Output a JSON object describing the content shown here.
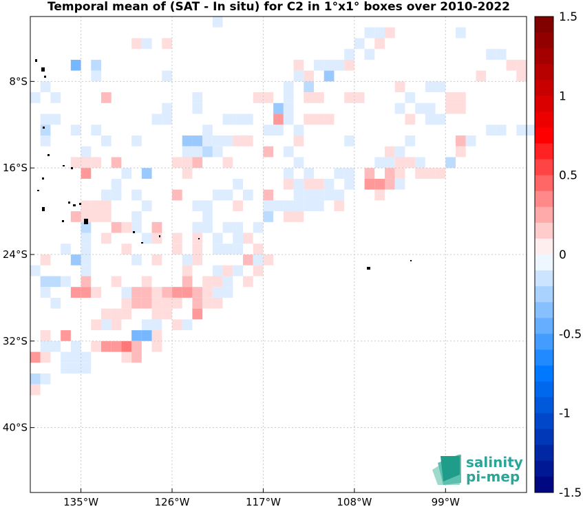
{
  "chart_data": {
    "type": "heatmap",
    "title": "Temporal mean of (SAT - In situ) for C2 in 1°x1° boxes over 2010-2022",
    "xlim": [
      -140,
      -91
    ],
    "ylim": [
      -46,
      -2
    ],
    "x_ticks": [
      {
        "value": -135,
        "label": "135°W"
      },
      {
        "value": -126,
        "label": "126°W"
      },
      {
        "value": -117,
        "label": "117°W"
      },
      {
        "value": -108,
        "label": "108°W"
      },
      {
        "value": -99,
        "label": "99°W"
      }
    ],
    "y_ticks": [
      {
        "value": -8,
        "label": "8°S"
      },
      {
        "value": -16,
        "label": "16°S"
      },
      {
        "value": -24,
        "label": "24°S"
      },
      {
        "value": -32,
        "label": "32°S"
      },
      {
        "value": -40,
        "label": "40°S"
      }
    ],
    "grid": true,
    "colorbar": {
      "min": -1.5,
      "max": 1.5,
      "ticks": [
        {
          "value": 1.5,
          "label": "1.5"
        },
        {
          "value": 1,
          "label": "1"
        },
        {
          "value": 0.5,
          "label": "0.5"
        },
        {
          "value": 0,
          "label": "0"
        },
        {
          "value": -0.5,
          "label": "-0.5"
        },
        {
          "value": -1,
          "label": "-1"
        },
        {
          "value": -1.5,
          "label": "-1.5"
        }
      ]
    },
    "cells": [
      [
        -122,
        -3,
        -0.1
      ],
      [
        -107,
        -4,
        -0.1
      ],
      [
        -106,
        -4,
        -0.1
      ],
      [
        -105,
        -4,
        0.1
      ],
      [
        -130,
        -5,
        0.1
      ],
      [
        -129,
        -5,
        -0.1
      ],
      [
        -127,
        -5,
        0.1
      ],
      [
        -108,
        -5,
        -0.1
      ],
      [
        -106,
        -5,
        0.1
      ],
      [
        -98,
        -4,
        -0.1
      ],
      [
        -109,
        -6,
        -0.1
      ],
      [
        -107,
        -6,
        -0.1
      ],
      [
        -95,
        -6,
        -0.1
      ],
      [
        -94,
        -6,
        -0.1
      ],
      [
        -136,
        -7,
        -0.4
      ],
      [
        -134,
        -7,
        -0.2
      ],
      [
        -114,
        -7,
        0.1
      ],
      [
        -112,
        -7,
        -0.1
      ],
      [
        -111,
        -7,
        -0.1
      ],
      [
        -110,
        -7,
        -0.1
      ],
      [
        -109,
        -7,
        0.1
      ],
      [
        -93,
        -7,
        0.1
      ],
      [
        -92,
        -7,
        0.1
      ],
      [
        -134,
        -8,
        -0.1
      ],
      [
        -127,
        -8,
        -0.1
      ],
      [
        -114,
        -8,
        -0.1
      ],
      [
        -113,
        -8,
        0.1
      ],
      [
        -111,
        -8,
        -0.3
      ],
      [
        -92,
        -8,
        0.1
      ],
      [
        -139,
        -9,
        -0.1
      ],
      [
        -115,
        -9,
        -0.1
      ],
      [
        -113,
        -9,
        -0.2
      ],
      [
        -104,
        -9,
        0.1
      ],
      [
        -101,
        -9,
        -0.1
      ],
      [
        -100,
        -9,
        -0.1
      ],
      [
        -96,
        -8,
        0.1
      ],
      [
        -138,
        -10,
        -0.1
      ],
      [
        -133,
        -10,
        0.2
      ],
      [
        -118,
        -10,
        0.1
      ],
      [
        -117,
        -10,
        0.1
      ],
      [
        -115,
        -10,
        -0.1
      ],
      [
        -113,
        -10,
        0.1
      ],
      [
        -112,
        -10,
        0.1
      ],
      [
        -109,
        -10,
        0.1
      ],
      [
        -108,
        -10,
        0.1
      ],
      [
        -103,
        -10,
        -0.1
      ],
      [
        -99,
        -10,
        0.1
      ],
      [
        -98,
        -10,
        0.1
      ],
      [
        -140,
        -10,
        -0.1
      ],
      [
        -124,
        -10,
        -0.1
      ],
      [
        -127,
        -11,
        -0.1
      ],
      [
        -124,
        -11,
        -0.1
      ],
      [
        -116,
        -11,
        -0.3
      ],
      [
        -115,
        -11,
        -0.1
      ],
      [
        -104,
        -11,
        -0.1
      ],
      [
        -102,
        -11,
        -0.1
      ],
      [
        -101,
        -11,
        -0.1
      ],
      [
        -99,
        -11,
        0.1
      ],
      [
        -98,
        -11,
        0.1
      ],
      [
        -139,
        -12,
        -0.1
      ],
      [
        -138,
        -12,
        -0.1
      ],
      [
        -128,
        -12,
        -0.1
      ],
      [
        -127,
        -12,
        -0.1
      ],
      [
        -121,
        -12,
        -0.1
      ],
      [
        -120,
        -12,
        -0.1
      ],
      [
        -119,
        -12,
        -0.1
      ],
      [
        -116,
        -12,
        0.3
      ],
      [
        -115,
        -12,
        -0.1
      ],
      [
        -113,
        -12,
        0.1
      ],
      [
        -112,
        -12,
        0.1
      ],
      [
        -111,
        -12,
        0.1
      ],
      [
        -103,
        -12,
        0.1
      ],
      [
        -101,
        -12,
        -0.1
      ],
      [
        -100,
        -12,
        -0.1
      ],
      [
        -139,
        -13,
        -0.2
      ],
      [
        -136,
        -13,
        -0.1
      ],
      [
        -134,
        -13,
        -0.1
      ],
      [
        -123,
        -13,
        -0.1
      ],
      [
        -117,
        -13,
        -0.1
      ],
      [
        -116,
        -13,
        -0.1
      ],
      [
        -114,
        -13,
        -0.1
      ],
      [
        -95,
        -13,
        -0.1
      ],
      [
        -94,
        -13,
        -0.1
      ],
      [
        -92,
        -13,
        -0.1
      ],
      [
        -91,
        -13,
        -0.1
      ],
      [
        -139,
        -14,
        -0.1
      ],
      [
        -133,
        -14,
        -0.1
      ],
      [
        -130,
        -14,
        -0.1
      ],
      [
        -125,
        -14,
        -0.3
      ],
      [
        -124,
        -14,
        -0.3
      ],
      [
        -123,
        -14,
        -0.1
      ],
      [
        -122,
        -14,
        -0.1
      ],
      [
        -121,
        -14,
        -0.1
      ],
      [
        -120,
        -14,
        0.1
      ],
      [
        -119,
        -14,
        0.1
      ],
      [
        -114,
        -14,
        0.1
      ],
      [
        -109,
        -14,
        -0.1
      ],
      [
        -103,
        -14,
        -0.1
      ],
      [
        -98,
        -14,
        0.2
      ],
      [
        -97,
        -14,
        -0.1
      ],
      [
        -135,
        -15,
        -0.1
      ],
      [
        -125,
        -15,
        -0.1
      ],
      [
        -124,
        -15,
        -0.1
      ],
      [
        -123,
        -15,
        -0.2
      ],
      [
        -122,
        -15,
        -0.1
      ],
      [
        -117,
        -15,
        0.2
      ],
      [
        -115,
        -15,
        -0.1
      ],
      [
        -105,
        -15,
        0.1
      ],
      [
        -104,
        -15,
        -0.1
      ],
      [
        -98,
        -15,
        0.1
      ],
      [
        -136,
        -16,
        0.1
      ],
      [
        -135,
        -16,
        0.1
      ],
      [
        -134,
        -16,
        0.1
      ],
      [
        -132,
        -16,
        0.2
      ],
      [
        -126,
        -16,
        0.1
      ],
      [
        -125,
        -16,
        0.1
      ],
      [
        -124,
        -16,
        0.2
      ],
      [
        -121,
        -16,
        0.1
      ],
      [
        -114,
        -16,
        -0.1
      ],
      [
        -106,
        -16,
        -0.1
      ],
      [
        -105,
        -16,
        -0.1
      ],
      [
        -104,
        -16,
        0.1
      ],
      [
        -103,
        -16,
        0.1
      ],
      [
        -102,
        -16,
        -0.1
      ],
      [
        -99,
        -16,
        -0.2
      ],
      [
        -135,
        -17,
        0.3
      ],
      [
        -131,
        -17,
        -0.1
      ],
      [
        -129,
        -17,
        -0.3
      ],
      [
        -125,
        -17,
        0.1
      ],
      [
        -115,
        -17,
        -0.1
      ],
      [
        -113,
        -17,
        -0.1
      ],
      [
        -110,
        -17,
        -0.1
      ],
      [
        -109,
        -17,
        -0.1
      ],
      [
        -107,
        -17,
        0.2
      ],
      [
        -105,
        -17,
        0.2
      ],
      [
        -104,
        -17,
        0.1
      ],
      [
        -102,
        -17,
        0.1
      ],
      [
        -101,
        -17,
        0.1
      ],
      [
        -100,
        -17,
        0.1
      ],
      [
        -132,
        -18,
        -0.1
      ],
      [
        -120,
        -18,
        -0.1
      ],
      [
        -115,
        -18,
        0.1
      ],
      [
        -114,
        -18,
        -0.1
      ],
      [
        -113,
        -18,
        0.1
      ],
      [
        -112,
        -18,
        0.1
      ],
      [
        -111,
        -18,
        -0.1
      ],
      [
        -109,
        -18,
        -0.1
      ],
      [
        -107,
        -18,
        0.3
      ],
      [
        -106,
        -18,
        0.3
      ],
      [
        -105,
        -18,
        0.2
      ],
      [
        -104,
        -18,
        -0.1
      ],
      [
        -133,
        -19,
        -0.1
      ],
      [
        -132,
        -19,
        -0.1
      ],
      [
        -130,
        -19,
        -0.1
      ],
      [
        -126,
        -19,
        0.2
      ],
      [
        -122,
        -19,
        -0.1
      ],
      [
        -121,
        -19,
        -0.1
      ],
      [
        -119,
        -19,
        -0.1
      ],
      [
        -117,
        -19,
        0.2
      ],
      [
        -114,
        -19,
        -0.1
      ],
      [
        -113,
        -19,
        -0.1
      ],
      [
        -112,
        -19,
        -0.1
      ],
      [
        -111,
        -19,
        -0.1
      ],
      [
        -110,
        -19,
        -0.1
      ],
      [
        -106,
        -19,
        0.1
      ],
      [
        -135,
        -20,
        0.1
      ],
      [
        -134,
        -20,
        0.1
      ],
      [
        -133,
        -20,
        0.1
      ],
      [
        -129,
        -20,
        -0.1
      ],
      [
        -124,
        -20,
        -0.1
      ],
      [
        -123,
        -20,
        -0.1
      ],
      [
        -120,
        -20,
        0.1
      ],
      [
        -117,
        -20,
        -0.1
      ],
      [
        -116,
        -20,
        -0.1
      ],
      [
        -115,
        -20,
        -0.1
      ],
      [
        -114,
        -20,
        -0.1
      ],
      [
        -113,
        -20,
        -0.1
      ],
      [
        -112,
        -20,
        -0.1
      ],
      [
        -110,
        -20,
        0.1
      ],
      [
        -136,
        -21,
        0.2
      ],
      [
        -135,
        -21,
        0.2
      ],
      [
        -134,
        -21,
        0.1
      ],
      [
        -133,
        -21,
        0.1
      ],
      [
        -130,
        -21,
        -0.1
      ],
      [
        -123,
        -21,
        -0.1
      ],
      [
        -117,
        -21,
        -0.2
      ],
      [
        -115,
        -21,
        0.1
      ],
      [
        -114,
        -21,
        0.1
      ],
      [
        -135,
        -21,
        0.1
      ],
      [
        -131,
        -22,
        0.1
      ],
      [
        -128,
        -22,
        -0.1
      ],
      [
        -124,
        -22,
        -0.1
      ],
      [
        -123,
        -22,
        -0.1
      ],
      [
        -121,
        -22,
        -0.1
      ],
      [
        -120,
        -22,
        -0.1
      ],
      [
        -118,
        -22,
        -0.1
      ],
      [
        -135,
        -22,
        -0.2
      ],
      [
        -132,
        -22,
        0.2
      ],
      [
        -130,
        -22,
        -0.1
      ],
      [
        -128,
        -22,
        0.2
      ],
      [
        -124,
        -22,
        -0.1
      ],
      [
        -123,
        -22,
        -0.1
      ],
      [
        -135,
        -23,
        -0.1
      ],
      [
        -133,
        -23,
        0.1
      ],
      [
        -129,
        -23,
        -0.1
      ],
      [
        -128,
        -23,
        0.1
      ],
      [
        -126,
        -23,
        0.1
      ],
      [
        -124,
        -23,
        0.1
      ],
      [
        -122,
        -23,
        -0.1
      ],
      [
        -120,
        -23,
        -0.1
      ],
      [
        -119,
        -23,
        0.1
      ],
      [
        -137,
        -24,
        -0.1
      ],
      [
        -135,
        -24,
        -0.1
      ],
      [
        -131,
        -24,
        0.1
      ],
      [
        -126,
        -24,
        0.1
      ],
      [
        -124,
        -24,
        0.1
      ],
      [
        -122,
        -24,
        -0.1
      ],
      [
        -121,
        -24,
        -0.1
      ],
      [
        -120,
        -24,
        -0.1
      ],
      [
        -118,
        -24,
        0.1
      ],
      [
        -139,
        -25,
        0.1
      ],
      [
        -136,
        -25,
        -0.3
      ],
      [
        -135,
        -25,
        -0.1
      ],
      [
        -130,
        -25,
        -0.1
      ],
      [
        -128,
        -25,
        0.1
      ],
      [
        -125,
        -25,
        -0.1
      ],
      [
        -124,
        -25,
        0.1
      ],
      [
        -119,
        -25,
        0.2
      ],
      [
        -118,
        -25,
        -0.1
      ],
      [
        -117,
        -25,
        0.1
      ],
      [
        -140,
        -26,
        -0.1
      ],
      [
        -135,
        -26,
        -0.1
      ],
      [
        -125,
        -26,
        0.1
      ],
      [
        -122,
        -26,
        -0.1
      ],
      [
        -121,
        -26,
        0.1
      ],
      [
        -120,
        -26,
        -0.1
      ],
      [
        -118,
        -26,
        0.1
      ],
      [
        -139,
        -27,
        -0.2
      ],
      [
        -138,
        -27,
        -0.2
      ],
      [
        -137,
        -27,
        -0.1
      ],
      [
        -135,
        -27,
        0.2
      ],
      [
        -132,
        -27,
        0.1
      ],
      [
        -129,
        -27,
        0.1
      ],
      [
        -125,
        -27,
        0.2
      ],
      [
        -123,
        -27,
        0.1
      ],
      [
        -122,
        -27,
        0.1
      ],
      [
        -121,
        -27,
        -0.1
      ],
      [
        -119,
        -27,
        0.1
      ],
      [
        -139,
        -28,
        -0.1
      ],
      [
        -136,
        -28,
        0.3
      ],
      [
        -135,
        -28,
        0.3
      ],
      [
        -134,
        -28,
        0.1
      ],
      [
        -131,
        -28,
        -0.1
      ],
      [
        -130,
        -28,
        0.2
      ],
      [
        -129,
        -28,
        0.2
      ],
      [
        -128,
        -28,
        0.1
      ],
      [
        -127,
        -28,
        0.2
      ],
      [
        -126,
        -28,
        0.3
      ],
      [
        -125,
        -28,
        0.3
      ],
      [
        -124,
        -28,
        0.2
      ],
      [
        -123,
        -28,
        0.1
      ],
      [
        -122,
        -28,
        -0.1
      ],
      [
        -121,
        -28,
        -0.1
      ],
      [
        -138,
        -29,
        -0.1
      ],
      [
        -131,
        -29,
        0.1
      ],
      [
        -130,
        -29,
        0.2
      ],
      [
        -129,
        -29,
        0.2
      ],
      [
        -128,
        -29,
        0.1
      ],
      [
        -127,
        -29,
        0.1
      ],
      [
        -126,
        -29,
        0.1
      ],
      [
        -124,
        -29,
        0.2
      ],
      [
        -123,
        -29,
        0.1
      ],
      [
        -122,
        -29,
        0.1
      ],
      [
        -133,
        -30,
        0.1
      ],
      [
        -132,
        -30,
        0.1
      ],
      [
        -131,
        -30,
        0.1
      ],
      [
        -128,
        -30,
        0.1
      ],
      [
        -127,
        -30,
        0.1
      ],
      [
        -124,
        -30,
        0.3
      ],
      [
        -134,
        -31,
        0.1
      ],
      [
        -133,
        -31,
        -0.1
      ],
      [
        -132,
        -31,
        0.1
      ],
      [
        -129,
        -31,
        -0.1
      ],
      [
        -128,
        -31,
        -0.1
      ],
      [
        -126,
        -31,
        0.1
      ],
      [
        -125,
        -31,
        -0.1
      ],
      [
        -139,
        -32,
        0.1
      ],
      [
        -137,
        -32,
        0.3
      ],
      [
        -130,
        -32,
        -0.4
      ],
      [
        -129,
        -32,
        -0.4
      ],
      [
        -128,
        -32,
        0.1
      ],
      [
        -139,
        -33,
        -0.1
      ],
      [
        -138,
        -33,
        -0.1
      ],
      [
        -136,
        -33,
        -0.1
      ],
      [
        -134,
        -33,
        0.1
      ],
      [
        -133,
        -33,
        0.3
      ],
      [
        -132,
        -33,
        0.3
      ],
      [
        -131,
        -33,
        0.4
      ],
      [
        -130,
        -33,
        0.2
      ],
      [
        -128,
        -33,
        0.1
      ],
      [
        -140,
        -34,
        0.3
      ],
      [
        -139,
        -34,
        0.1
      ],
      [
        -137,
        -34,
        -0.1
      ],
      [
        -136,
        -34,
        -0.1
      ],
      [
        -135,
        -34,
        -0.1
      ],
      [
        -131,
        -34,
        0.1
      ],
      [
        -130,
        -34,
        0.2
      ],
      [
        -137,
        -35,
        -0.1
      ],
      [
        -136,
        -35,
        -0.1
      ],
      [
        -135,
        -35,
        -0.1
      ],
      [
        -140,
        -36,
        -0.2
      ],
      [
        -139,
        -36,
        -0.1
      ],
      [
        -140,
        -37,
        0.1
      ]
    ]
  },
  "logo": {
    "line1": "salinity",
    "line2": "pi-mep"
  }
}
